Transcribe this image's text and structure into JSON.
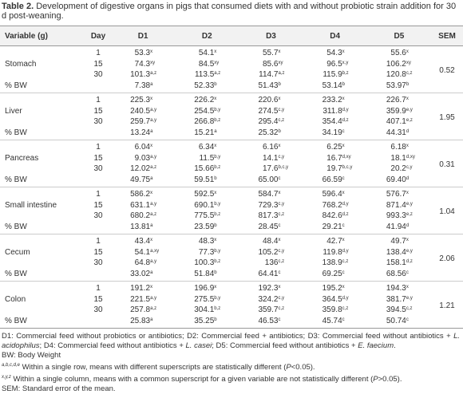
{
  "title": {
    "label": "Table 2.",
    "text": " Development of digestive organs in pigs that consumed diets with and without probiotic strain addition for 30 d post-weaning."
  },
  "header": [
    "Variable (g)",
    "Day",
    "D1",
    "D2",
    "D3",
    "D4",
    "D5",
    "SEM"
  ],
  "groups": [
    {
      "name": "Stomach",
      "days": [
        "1",
        "15",
        "30"
      ],
      "rows": [
        [
          [
            "53.3",
            "x"
          ],
          [
            "54.1",
            "x"
          ],
          [
            "55.7",
            "x"
          ],
          [
            "54.3",
            "x"
          ],
          [
            "55.6",
            "x"
          ]
        ],
        [
          [
            "74.3",
            "xy"
          ],
          [
            "84.5",
            "xy"
          ],
          [
            "85.6",
            "xy"
          ],
          [
            "96.5",
            "x,y"
          ],
          [
            "106.2",
            "xy"
          ]
        ],
        [
          [
            "101.3",
            "a,z"
          ],
          [
            "113.5",
            "a,z"
          ],
          [
            "114.7",
            "a,z"
          ],
          [
            "115.9",
            "b,z"
          ],
          [
            "120.8",
            "c,z"
          ]
        ]
      ],
      "bw_label": "% BW",
      "bw": [
        [
          "7.38",
          "a"
        ],
        [
          "52.33",
          "b"
        ],
        [
          "51.43",
          "b"
        ],
        [
          "53.14",
          "b"
        ],
        [
          "53.97",
          "b"
        ]
      ],
      "sem": "0.52"
    },
    {
      "name": "Liver",
      "days": [
        "1",
        "15",
        "30"
      ],
      "rows": [
        [
          [
            "225.3",
            "x"
          ],
          [
            "226.2",
            "x"
          ],
          [
            "220.6",
            "x"
          ],
          [
            "233.2",
            "x"
          ],
          [
            "226.7",
            "x"
          ]
        ],
        [
          [
            "240.5",
            "a,y"
          ],
          [
            "254.5",
            "b,y"
          ],
          [
            "274.5",
            "c,y"
          ],
          [
            "311.8",
            "d,y"
          ],
          [
            "359.9",
            "e,y"
          ]
        ],
        [
          [
            "259.7",
            "a,y"
          ],
          [
            "266.8",
            "b,z"
          ],
          [
            "295.4",
            "c,z"
          ],
          [
            "354.4",
            "d,z"
          ],
          [
            "407.1",
            "e,z"
          ]
        ]
      ],
      "bw_label": "% BW",
      "bw": [
        [
          "13.24",
          "a"
        ],
        [
          "15.21",
          "a"
        ],
        [
          "25.32",
          "b"
        ],
        [
          "34.19",
          "c"
        ],
        [
          "44.31",
          "d"
        ]
      ],
      "sem": "1.95"
    },
    {
      "name": "Pancreas",
      "days": [
        "1",
        "15",
        "30"
      ],
      "rows": [
        [
          [
            "6.04",
            "x"
          ],
          [
            "6.34",
            "x"
          ],
          [
            "6.16",
            "x"
          ],
          [
            "6.25",
            "x"
          ],
          [
            "6.18",
            "x"
          ]
        ],
        [
          [
            "9.03",
            "a,y"
          ],
          [
            "11.5",
            "b,y"
          ],
          [
            "14.1",
            "c,y"
          ],
          [
            "16.7",
            "d,xy"
          ],
          [
            "18.1",
            "d,xy"
          ]
        ],
        [
          [
            "12.02",
            "a,z"
          ],
          [
            "15.66",
            "b,z"
          ],
          [
            "17.6",
            "b,c,y"
          ],
          [
            "19.7",
            "b,c,y"
          ],
          [
            "20.2",
            "c,y"
          ]
        ]
      ],
      "bw_label": "% BW",
      "bw": [
        [
          "49.75",
          "a"
        ],
        [
          "59.51",
          "b"
        ],
        [
          "65.00",
          "c"
        ],
        [
          "66.59",
          "c"
        ],
        [
          "69.40",
          "d"
        ]
      ],
      "sem": "0.31"
    },
    {
      "name": "Small intestine",
      "days": [
        "1",
        "15",
        "30"
      ],
      "rows": [
        [
          [
            "586.2",
            "x"
          ],
          [
            "592.5",
            "x"
          ],
          [
            "584.7",
            "x"
          ],
          [
            "596.4",
            "x"
          ],
          [
            "576.7",
            "x"
          ]
        ],
        [
          [
            "631.1",
            "a,y"
          ],
          [
            "690.1",
            "b,y"
          ],
          [
            "729.3",
            "c,y"
          ],
          [
            "768.2",
            "d,y"
          ],
          [
            "871.4",
            "e,y"
          ]
        ],
        [
          [
            "680.2",
            "a,z"
          ],
          [
            "775.5",
            "b,z"
          ],
          [
            "817.3",
            "c,z"
          ],
          [
            "842.6",
            "d,z"
          ],
          [
            "993.3",
            "e,z"
          ]
        ]
      ],
      "bw_label": "% BW",
      "bw": [
        [
          "13.81",
          "a"
        ],
        [
          "23.59",
          "b"
        ],
        [
          "28.45",
          "c"
        ],
        [
          "29.21",
          "c"
        ],
        [
          "41.94",
          "d"
        ]
      ],
      "sem": "1.04"
    },
    {
      "name": "Cecum",
      "days": [
        "1",
        "15",
        "30"
      ],
      "rows": [
        [
          [
            "43.4",
            "x"
          ],
          [
            "48.3",
            "x"
          ],
          [
            "48.4",
            "x"
          ],
          [
            "42.7",
            "x"
          ],
          [
            "49.7",
            "x"
          ]
        ],
        [
          [
            "54.1",
            "a,xy"
          ],
          [
            "77.3",
            "b,y"
          ],
          [
            "105.2",
            "c,y"
          ],
          [
            "119.8",
            "d,y"
          ],
          [
            "138.4",
            "e,y"
          ]
        ],
        [
          [
            "64.8",
            "a,y"
          ],
          [
            "100.3",
            "b,z"
          ],
          [
            "136",
            "c,z"
          ],
          [
            "138.9",
            "c,z"
          ],
          [
            "158.1",
            "d,z"
          ]
        ]
      ],
      "bw_label": "% BW",
      "bw": [
        [
          "33.02",
          "a"
        ],
        [
          "51.84",
          "b"
        ],
        [
          "64.41",
          "c"
        ],
        [
          "69.25",
          "c"
        ],
        [
          "68.56",
          "c"
        ]
      ],
      "sem": "2.06"
    },
    {
      "name": "Colon",
      "days": [
        "1",
        "15",
        "30"
      ],
      "rows": [
        [
          [
            "191.2",
            "x"
          ],
          [
            "196.9",
            "x"
          ],
          [
            "192.3",
            "x"
          ],
          [
            "195.2",
            "x"
          ],
          [
            "194.3",
            "x"
          ]
        ],
        [
          [
            "221.5",
            "a,y"
          ],
          [
            "275.5",
            "b,y"
          ],
          [
            "324.2",
            "c,y"
          ],
          [
            "364.5",
            "d,y"
          ],
          [
            "381.7",
            "e,y"
          ]
        ],
        [
          [
            "257.8",
            "a,z"
          ],
          [
            "304.1",
            "b,z"
          ],
          [
            "359.7",
            "c,z"
          ],
          [
            "359.8",
            "c,z"
          ],
          [
            "394.5",
            "c,z"
          ]
        ]
      ],
      "bw_label": "% BW",
      "bw": [
        [
          "25.83",
          "a"
        ],
        [
          "35.25",
          "b"
        ],
        [
          "46.53",
          "c"
        ],
        [
          "45.74",
          "c"
        ],
        [
          "50.74",
          "c"
        ]
      ],
      "sem": "1.21"
    }
  ],
  "footnotes": [
    {
      "segments": [
        "D1: Commercial feed without probiotics or antibiotics; D2: Commercial feed + antibiotics; D3: Commercial feed without antibiotics + ",
        "L. acidophilus",
        "; D4: Commercial feed without antibiotics + ",
        "L. casei",
        "; D5: Commercial feed without antibiotics + ",
        "E. faecium",
        "."
      ]
    },
    {
      "segments": [
        "BW: Body Weight"
      ]
    },
    {
      "sup": "a,b,c,d,e",
      "segments": [
        " Within a single row, means with different superscripts are statistically different (",
        "P",
        "<0.05)."
      ]
    },
    {
      "sup": "x,y,z",
      "segments": [
        " Within a single column, means with a common superscript for a given variable are not statistically different (",
        "P",
        ">0.05)."
      ]
    },
    {
      "segments": [
        "SEM: Standard error of the mean."
      ]
    }
  ]
}
